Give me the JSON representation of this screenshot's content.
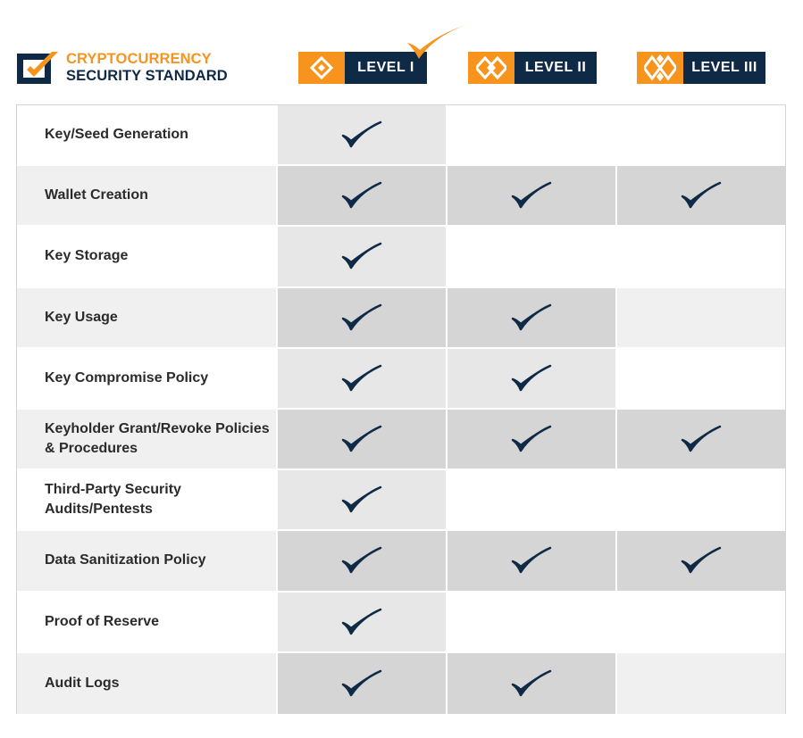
{
  "logo": {
    "line1": "CRYPTOCURRENCY",
    "line2": "SECURITY STANDARD"
  },
  "levels": [
    {
      "label": "LEVEL I"
    },
    {
      "label": "LEVEL II"
    },
    {
      "label": "LEVEL III"
    }
  ],
  "colors": {
    "orange": "#f7941d",
    "navy": "#0f2a46",
    "check": "#0f2a46"
  },
  "rows": [
    {
      "label": "Key/Seed Generation",
      "checks": [
        true,
        false,
        false
      ]
    },
    {
      "label": "Wallet Creation",
      "checks": [
        true,
        true,
        true
      ]
    },
    {
      "label": "Key Storage",
      "checks": [
        true,
        false,
        false
      ]
    },
    {
      "label": "Key Usage",
      "checks": [
        true,
        true,
        false
      ]
    },
    {
      "label": "Key Compromise Policy",
      "checks": [
        true,
        true,
        false
      ]
    },
    {
      "label": "Keyholder Grant/Revoke Policies & Procedures",
      "checks": [
        true,
        true,
        true
      ]
    },
    {
      "label": "Third-Party Security Audits/Pentests",
      "checks": [
        true,
        false,
        false
      ]
    },
    {
      "label": "Data Sanitization Policy",
      "checks": [
        true,
        true,
        true
      ]
    },
    {
      "label": "Proof of Reserve",
      "checks": [
        true,
        false,
        false
      ]
    },
    {
      "label": "Audit Logs",
      "checks": [
        true,
        true,
        false
      ]
    }
  ]
}
